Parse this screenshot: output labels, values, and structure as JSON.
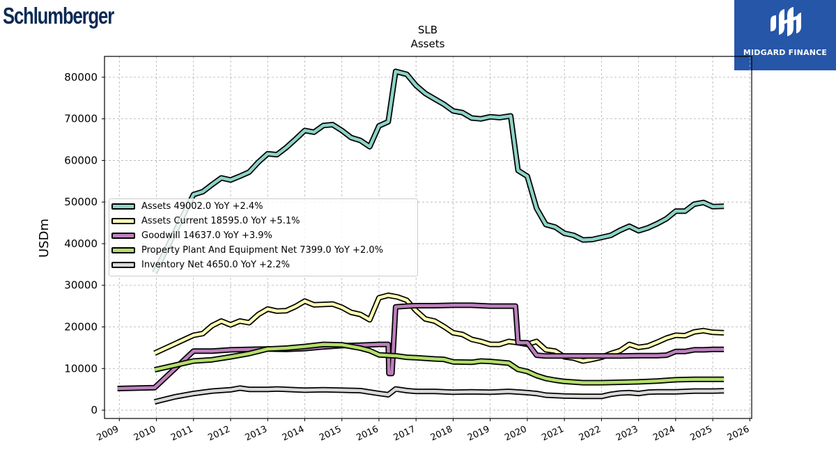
{
  "brand": {
    "name": "Schlumberger"
  },
  "partner": {
    "name": "MIDGARD FINANCE"
  },
  "colors": {
    "assets": "#8dd3c7",
    "assets_current": "#ffffb3",
    "goodwill": "#bc80bd",
    "ppe": "#b3de69",
    "inventory": "#d9d9d9",
    "grid": "#b0b0b0",
    "partner_bg": "#2656a8",
    "brand": "#0b2a55"
  },
  "chart_data": {
    "type": "line",
    "title": "SLB",
    "subtitle": "Assets",
    "ylabel": "USDm",
    "xlabel": "",
    "ylim": [
      -2000,
      85000
    ],
    "xlim": [
      2008.6,
      2026.05
    ],
    "yticks": [
      0,
      10000,
      20000,
      30000,
      40000,
      50000,
      60000,
      70000,
      80000
    ],
    "ytick_labels": [
      "0",
      "10000",
      "20000",
      "30000",
      "40000",
      "50000",
      "60000",
      "70000",
      "80000"
    ],
    "xticks": [
      2009,
      2010,
      2011,
      2012,
      2013,
      2014,
      2015,
      2016,
      2017,
      2018,
      2019,
      2020,
      2021,
      2022,
      2023,
      2024,
      2025,
      2026
    ],
    "xtick_labels": [
      "2009",
      "2010",
      "2011",
      "2012",
      "2013",
      "2014",
      "2015",
      "2016",
      "2017",
      "2018",
      "2019",
      "2020",
      "2021",
      "2022",
      "2023",
      "2024",
      "2025",
      "2026"
    ],
    "grid": true,
    "legend_position": "center-left",
    "series": [
      {
        "name": "Assets",
        "legend": "Assets  49002.0 YoY +2.4%",
        "color": "#8dd3c7",
        "points": [
          [
            2009.95,
            33000
          ],
          [
            2011.0,
            51800
          ],
          [
            2011.25,
            52500
          ],
          [
            2011.5,
            54200
          ],
          [
            2011.75,
            55800
          ],
          [
            2012.0,
            55300
          ],
          [
            2012.25,
            56200
          ],
          [
            2012.5,
            57200
          ],
          [
            2012.75,
            59600
          ],
          [
            2013.0,
            61600
          ],
          [
            2013.25,
            61400
          ],
          [
            2013.5,
            63100
          ],
          [
            2013.75,
            65100
          ],
          [
            2014.0,
            67200
          ],
          [
            2014.25,
            66800
          ],
          [
            2014.5,
            68400
          ],
          [
            2014.75,
            68600
          ],
          [
            2015.0,
            67200
          ],
          [
            2015.25,
            65500
          ],
          [
            2015.5,
            64800
          ],
          [
            2015.75,
            63300
          ],
          [
            2016.0,
            68300
          ],
          [
            2016.25,
            69300
          ],
          [
            2016.45,
            81400
          ],
          [
            2016.75,
            80700
          ],
          [
            2017.0,
            78000
          ],
          [
            2017.25,
            76100
          ],
          [
            2017.5,
            74800
          ],
          [
            2017.75,
            73500
          ],
          [
            2018.0,
            71900
          ],
          [
            2018.25,
            71500
          ],
          [
            2018.5,
            70200
          ],
          [
            2018.75,
            70000
          ],
          [
            2019.0,
            70500
          ],
          [
            2019.25,
            70300
          ],
          [
            2019.55,
            70700
          ],
          [
            2019.75,
            57600
          ],
          [
            2020.0,
            56200
          ],
          [
            2020.25,
            48500
          ],
          [
            2020.5,
            44600
          ],
          [
            2020.75,
            44000
          ],
          [
            2021.0,
            42500
          ],
          [
            2021.25,
            42000
          ],
          [
            2021.5,
            40900
          ],
          [
            2021.75,
            41000
          ],
          [
            2022.0,
            41500
          ],
          [
            2022.25,
            42000
          ],
          [
            2022.5,
            43200
          ],
          [
            2022.75,
            44200
          ],
          [
            2023.0,
            43100
          ],
          [
            2023.25,
            43800
          ],
          [
            2023.5,
            44800
          ],
          [
            2023.75,
            46000
          ],
          [
            2024.0,
            47800
          ],
          [
            2024.25,
            47800
          ],
          [
            2024.5,
            49500
          ],
          [
            2024.75,
            49900
          ],
          [
            2025.0,
            48900
          ],
          [
            2025.3,
            49000
          ]
        ]
      },
      {
        "name": "Assets Current",
        "legend": "Assets Current  18595.0 YoY +5.1%",
        "color": "#ffffb3",
        "points": [
          [
            2009.95,
            13700
          ],
          [
            2011.0,
            18000
          ],
          [
            2011.25,
            18400
          ],
          [
            2011.5,
            20300
          ],
          [
            2011.75,
            21400
          ],
          [
            2012.0,
            20500
          ],
          [
            2012.25,
            21400
          ],
          [
            2012.5,
            21000
          ],
          [
            2012.75,
            23000
          ],
          [
            2013.0,
            24300
          ],
          [
            2013.25,
            23800
          ],
          [
            2013.5,
            23900
          ],
          [
            2013.75,
            24900
          ],
          [
            2014.0,
            26200
          ],
          [
            2014.25,
            25300
          ],
          [
            2014.5,
            25400
          ],
          [
            2014.75,
            25500
          ],
          [
            2015.0,
            24700
          ],
          [
            2015.25,
            23500
          ],
          [
            2015.5,
            23000
          ],
          [
            2015.75,
            21700
          ],
          [
            2016.0,
            27000
          ],
          [
            2016.25,
            27600
          ],
          [
            2016.5,
            27200
          ],
          [
            2016.75,
            26400
          ],
          [
            2017.0,
            23900
          ],
          [
            2017.25,
            21900
          ],
          [
            2017.5,
            21400
          ],
          [
            2017.75,
            20100
          ],
          [
            2018.0,
            18600
          ],
          [
            2018.25,
            18200
          ],
          [
            2018.5,
            17000
          ],
          [
            2018.75,
            16500
          ],
          [
            2019.0,
            15800
          ],
          [
            2019.25,
            15800
          ],
          [
            2019.5,
            16500
          ],
          [
            2019.75,
            16200
          ],
          [
            2020.0,
            15800
          ],
          [
            2020.25,
            16500
          ],
          [
            2020.5,
            14500
          ],
          [
            2020.75,
            14200
          ],
          [
            2021.0,
            12800
          ],
          [
            2021.25,
            12500
          ],
          [
            2021.5,
            11800
          ],
          [
            2021.75,
            12200
          ],
          [
            2022.0,
            12700
          ],
          [
            2022.25,
            13600
          ],
          [
            2022.5,
            14300
          ],
          [
            2022.75,
            15800
          ],
          [
            2023.0,
            15100
          ],
          [
            2023.25,
            15400
          ],
          [
            2023.5,
            16300
          ],
          [
            2023.75,
            17300
          ],
          [
            2024.0,
            18000
          ],
          [
            2024.25,
            17900
          ],
          [
            2024.5,
            18800
          ],
          [
            2024.75,
            19100
          ],
          [
            2025.0,
            18700
          ],
          [
            2025.3,
            18600
          ]
        ]
      },
      {
        "name": "Goodwill",
        "legend": "Goodwill  14637.0 YoY +3.9%",
        "color": "#bc80bd",
        "points": [
          [
            2008.95,
            5200
          ],
          [
            2009.95,
            5400
          ],
          [
            2010.5,
            10000
          ],
          [
            2011.0,
            14200
          ],
          [
            2011.5,
            14200
          ],
          [
            2012.0,
            14500
          ],
          [
            2012.5,
            14600
          ],
          [
            2013.0,
            14700
          ],
          [
            2013.5,
            14600
          ],
          [
            2014.0,
            14800
          ],
          [
            2014.5,
            15200
          ],
          [
            2015.0,
            15500
          ],
          [
            2015.5,
            15600
          ],
          [
            2016.0,
            15800
          ],
          [
            2016.25,
            15800
          ],
          [
            2016.27,
            8800
          ],
          [
            2016.35,
            8800
          ],
          [
            2016.45,
            24800
          ],
          [
            2016.75,
            25000
          ],
          [
            2017.0,
            25100
          ],
          [
            2017.5,
            25100
          ],
          [
            2018.0,
            25200
          ],
          [
            2018.5,
            25200
          ],
          [
            2019.0,
            25000
          ],
          [
            2019.5,
            25000
          ],
          [
            2019.68,
            25000
          ],
          [
            2019.75,
            16200
          ],
          [
            2020.0,
            16200
          ],
          [
            2020.25,
            13200
          ],
          [
            2020.5,
            13000
          ],
          [
            2021.0,
            13000
          ],
          [
            2021.5,
            13000
          ],
          [
            2022.0,
            13000
          ],
          [
            2022.5,
            13000
          ],
          [
            2023.0,
            13100
          ],
          [
            2023.5,
            13100
          ],
          [
            2023.75,
            13200
          ],
          [
            2024.0,
            14100
          ],
          [
            2024.25,
            14100
          ],
          [
            2024.5,
            14500
          ],
          [
            2024.75,
            14500
          ],
          [
            2025.0,
            14600
          ],
          [
            2025.3,
            14600
          ]
        ]
      },
      {
        "name": "Property Plant And Equipment Net",
        "legend": "Property Plant And Equipment Net  7399.0 YoY +2.0%",
        "color": "#b3de69",
        "points": [
          [
            2009.95,
            9700
          ],
          [
            2011.0,
            11800
          ],
          [
            2011.5,
            12100
          ],
          [
            2012.0,
            12800
          ],
          [
            2012.5,
            13600
          ],
          [
            2013.0,
            14700
          ],
          [
            2013.5,
            14900
          ],
          [
            2014.0,
            15300
          ],
          [
            2014.5,
            15800
          ],
          [
            2015.0,
            15700
          ],
          [
            2015.5,
            14900
          ],
          [
            2015.75,
            14300
          ],
          [
            2016.0,
            13300
          ],
          [
            2016.5,
            13000
          ],
          [
            2016.75,
            12700
          ],
          [
            2017.0,
            12600
          ],
          [
            2017.5,
            12300
          ],
          [
            2017.75,
            12200
          ],
          [
            2018.0,
            11600
          ],
          [
            2018.5,
            11500
          ],
          [
            2018.75,
            11800
          ],
          [
            2019.0,
            11700
          ],
          [
            2019.5,
            11300
          ],
          [
            2019.75,
            9800
          ],
          [
            2020.0,
            9300
          ],
          [
            2020.25,
            8300
          ],
          [
            2020.5,
            7600
          ],
          [
            2020.75,
            7200
          ],
          [
            2021.0,
            6900
          ],
          [
            2021.5,
            6600
          ],
          [
            2022.0,
            6600
          ],
          [
            2022.5,
            6700
          ],
          [
            2023.0,
            6800
          ],
          [
            2023.5,
            7000
          ],
          [
            2024.0,
            7300
          ],
          [
            2024.5,
            7400
          ],
          [
            2025.0,
            7400
          ],
          [
            2025.3,
            7399
          ]
        ]
      },
      {
        "name": "Inventory Net",
        "legend": "Inventory Net  4650.0 YoY +2.2%",
        "color": "#d9d9d9",
        "points": [
          [
            2009.95,
            2000
          ],
          [
            2010.5,
            3200
          ],
          [
            2011.0,
            4000
          ],
          [
            2011.5,
            4600
          ],
          [
            2012.0,
            4900
          ],
          [
            2012.25,
            5300
          ],
          [
            2012.5,
            5000
          ],
          [
            2013.0,
            5000
          ],
          [
            2013.25,
            5100
          ],
          [
            2014.0,
            4800
          ],
          [
            2014.5,
            4900
          ],
          [
            2015.0,
            4800
          ],
          [
            2015.5,
            4700
          ],
          [
            2016.0,
            4000
          ],
          [
            2016.25,
            3700
          ],
          [
            2016.45,
            5100
          ],
          [
            2016.75,
            4700
          ],
          [
            2017.0,
            4500
          ],
          [
            2017.5,
            4500
          ],
          [
            2018.0,
            4300
          ],
          [
            2018.5,
            4400
          ],
          [
            2019.0,
            4300
          ],
          [
            2019.5,
            4500
          ],
          [
            2020.0,
            4200
          ],
          [
            2020.25,
            4000
          ],
          [
            2020.5,
            3600
          ],
          [
            2021.0,
            3400
          ],
          [
            2021.5,
            3300
          ],
          [
            2022.0,
            3300
          ],
          [
            2022.25,
            3800
          ],
          [
            2022.5,
            4100
          ],
          [
            2022.75,
            4200
          ],
          [
            2023.0,
            4000
          ],
          [
            2023.25,
            4300
          ],
          [
            2023.5,
            4400
          ],
          [
            2024.0,
            4400
          ],
          [
            2024.5,
            4600
          ],
          [
            2025.0,
            4600
          ],
          [
            2025.3,
            4650
          ]
        ]
      }
    ]
  }
}
